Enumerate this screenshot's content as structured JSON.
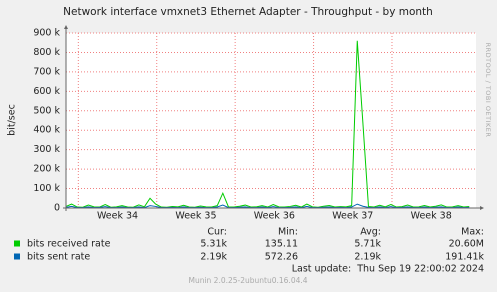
{
  "chart_data": {
    "type": "line",
    "title": "Network interface vmxnet3 Ethernet Adapter - Throughput - by month",
    "y_label": "bit/sec",
    "watermark": "RRDTOOL / TOBI OETIKER",
    "grid": true,
    "xlim": [
      0,
      36.6
    ],
    "xticks": [
      {
        "value": 1.1,
        "label": "Week 34"
      },
      {
        "value": 8.1,
        "label": "Week 35"
      },
      {
        "value": 15.1,
        "label": "Week 36"
      },
      {
        "value": 22.1,
        "label": "Week 37"
      },
      {
        "value": 29.1,
        "label": "Week 38"
      }
    ],
    "ylim": [
      0,
      900000
    ],
    "yticks": [
      0,
      {
        "value": 100000,
        "label": "100 k"
      },
      {
        "value": 200000,
        "label": "200 k"
      },
      {
        "value": 300000,
        "label": "300 k"
      },
      {
        "value": 400000,
        "label": "400 k"
      },
      {
        "value": 500000,
        "label": "500 k"
      },
      {
        "value": 600000,
        "label": "600 k"
      },
      {
        "value": 700000,
        "label": "700 k"
      },
      {
        "value": 800000,
        "label": "800 k"
      },
      {
        "value": 900000,
        "label": "900 k"
      }
    ],
    "x": [
      0,
      0.5,
      1,
      1.5,
      2,
      2.5,
      3,
      3.5,
      4,
      4.5,
      5,
      5.5,
      6,
      6.5,
      7,
      7.5,
      8,
      8.5,
      9,
      9.5,
      10,
      10.5,
      11,
      11.5,
      12,
      12.5,
      13,
      13.5,
      14,
      14.5,
      15,
      15.5,
      16,
      16.5,
      17,
      17.5,
      18,
      18.5,
      19,
      19.5,
      20,
      20.5,
      21,
      21.5,
      22,
      22.5,
      23,
      23.5,
      24,
      24.5,
      25,
      25.5,
      26,
      26.5,
      27,
      27.5,
      28,
      28.5,
      29,
      29.5,
      30,
      30.5,
      31,
      31.5,
      32,
      32.5,
      33,
      33.5,
      34,
      34.5,
      35,
      35.5,
      36
    ],
    "stat_headers": [
      "Cur:",
      "Min:",
      "Avg:",
      "Max:"
    ],
    "series": [
      {
        "name": "bits received rate",
        "color": "#00cc00",
        "stats": [
          "5.31k",
          "135.11",
          "5.71k",
          "20.60M"
        ],
        "values": [
          8000,
          20000,
          5000,
          4000,
          15000,
          6000,
          5000,
          18000,
          4000,
          6000,
          12000,
          5000,
          4000,
          16000,
          6000,
          50000,
          20000,
          5000,
          4000,
          8000,
          6000,
          14000,
          5000,
          4000,
          10000,
          6000,
          5000,
          12000,
          76000,
          6000,
          5000,
          9000,
          15000,
          5000,
          6000,
          12000,
          5000,
          18000,
          6000,
          5000,
          8000,
          14000,
          5000,
          20000,
          6000,
          4000,
          9000,
          13000,
          5000,
          7000,
          6000,
          12000,
          860000,
          440000,
          8000,
          5000,
          14000,
          6000,
          18000,
          5000,
          7000,
          15000,
          5000,
          6000,
          13000,
          5000,
          9000,
          16000,
          5000,
          6000,
          12000,
          5000,
          8000
        ]
      },
      {
        "name": "bits sent rate",
        "color": "#0066b3",
        "stats": [
          "2.19k",
          "572.26",
          "2.19k",
          "191.41k"
        ],
        "values": [
          3000,
          8000,
          2000,
          2000,
          6000,
          2000,
          3000,
          7000,
          2000,
          2000,
          5000,
          2000,
          2000,
          6000,
          2000,
          12000,
          8000,
          2000,
          2000,
          3000,
          2000,
          6000,
          2000,
          2000,
          4000,
          2000,
          2000,
          5000,
          15000,
          2000,
          2000,
          4000,
          6000,
          2000,
          2000,
          5000,
          2000,
          7000,
          2000,
          2000,
          3000,
          6000,
          2000,
          8000,
          2000,
          2000,
          4000,
          5000,
          2000,
          3000,
          2000,
          5000,
          20000,
          9000,
          3000,
          2000,
          6000,
          2000,
          7000,
          2000,
          3000,
          6000,
          2000,
          2000,
          5000,
          2000,
          4000,
          6000,
          2000,
          2000,
          5000,
          2000,
          3000
        ]
      }
    ],
    "last_update": "Last update:  Thu Sep 19 22:00:02 2024",
    "footer": "Munin 2.0.25-2ubuntu0.16.04.4"
  }
}
